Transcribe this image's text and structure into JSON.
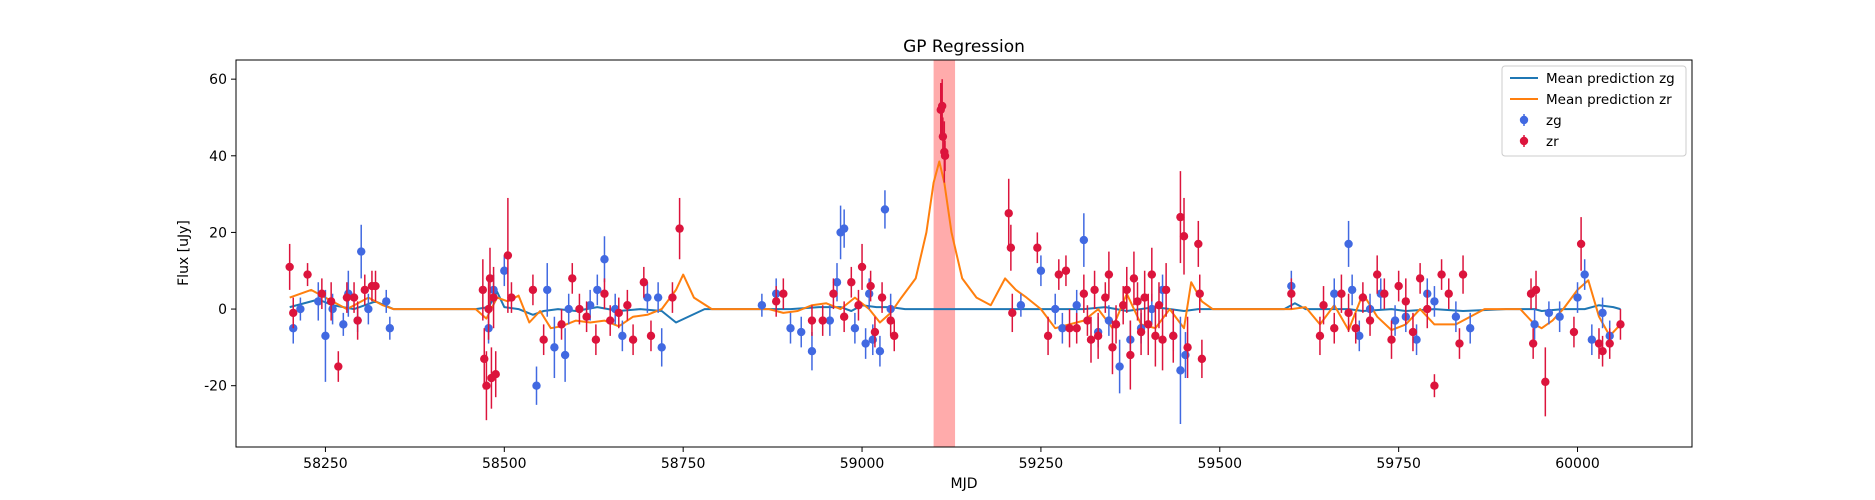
{
  "chart_data": {
    "type": "scatter",
    "title": "GP Regression",
    "xlabel": "MJD",
    "ylabel": "Flux [uJy]",
    "xlim": [
      58125,
      60160
    ],
    "ylim": [
      -36,
      65
    ],
    "xticks": [
      58250,
      58500,
      58750,
      59000,
      59250,
      59500,
      59750,
      60000
    ],
    "yticks": [
      -20,
      0,
      20,
      40,
      60
    ],
    "grid": false,
    "legend_position": "top-right",
    "highlight_span": {
      "x": [
        59100,
        59130
      ],
      "color": "#ff0000",
      "alpha": 0.33
    },
    "legend": [
      {
        "label": "Mean prediction zg",
        "kind": "line",
        "color": "#1f77b4"
      },
      {
        "label": "Mean prediction zr",
        "kind": "line",
        "color": "#ff7f0e"
      },
      {
        "label": "zg",
        "kind": "errorbar",
        "color": "#4169e1"
      },
      {
        "label": "zr",
        "kind": "errorbar",
        "color": "#dc143c"
      }
    ],
    "series": [
      {
        "name": "Mean prediction zg",
        "kind": "line",
        "color": "#1f77b4",
        "x": [
          58200,
          58240,
          58260,
          58290,
          58320,
          58345,
          58360,
          58460,
          58478,
          58490,
          58500,
          58520,
          58540,
          58555,
          58575,
          58600,
          58630,
          58660,
          58690,
          58720,
          58740,
          58780,
          58820,
          58870,
          58900,
          58940,
          58970,
          58985,
          59000,
          59020,
          59040,
          59060,
          59090,
          59150,
          59200,
          59230,
          59250,
          59280,
          59310,
          59340,
          59370,
          59410,
          59450,
          59470,
          59500,
          59560,
          59590,
          59605,
          59620,
          59660,
          59680,
          59700,
          59740,
          59760,
          59800,
          59840,
          59900,
          59940,
          59950,
          59980,
          60010,
          60030,
          60050,
          60060
        ],
        "y": [
          0.5,
          2.5,
          1,
          0,
          2,
          0,
          0,
          0,
          0.5,
          4.5,
          0.5,
          0,
          -1.5,
          -0.5,
          0,
          -0.5,
          0.5,
          -0.5,
          0,
          -0.5,
          -3.5,
          0,
          0,
          0,
          0,
          0.5,
          0.5,
          -0.5,
          1,
          0.5,
          0.5,
          0,
          0,
          0,
          0,
          0,
          0,
          0,
          0,
          0.5,
          -0.5,
          0.5,
          -0.5,
          0,
          0,
          0,
          0,
          1.5,
          0,
          0,
          0,
          -0.5,
          0,
          -0.5,
          0,
          -0.5,
          0,
          0,
          -0.5,
          0,
          0,
          1,
          0.5,
          0
        ]
      },
      {
        "name": "Mean prediction zr",
        "kind": "line",
        "color": "#ff7f0e",
        "x": [
          58200,
          58230,
          58250,
          58280,
          58310,
          58330,
          58345,
          58360,
          58460,
          58475,
          58490,
          58505,
          58520,
          58535,
          58550,
          58565,
          58580,
          58600,
          58620,
          58640,
          58660,
          58680,
          58700,
          58720,
          58740,
          58750,
          58765,
          58790,
          58850,
          58870,
          58890,
          58910,
          58930,
          58950,
          58970,
          58990,
          59010,
          59025,
          59040,
          59055,
          59075,
          59090,
          59100,
          59108,
          59115,
          59125,
          59140,
          59160,
          59180,
          59200,
          59215,
          59230,
          59250,
          59270,
          59290,
          59310,
          59330,
          59350,
          59370,
          59390,
          59410,
          59430,
          59450,
          59460,
          59475,
          59490,
          59520,
          59570,
          59600,
          59620,
          59640,
          59660,
          59680,
          59700,
          59720,
          59740,
          59760,
          59780,
          59800,
          59830,
          59870,
          59920,
          59940,
          59950,
          59965,
          59980,
          60000,
          60015,
          60030,
          60045,
          60060
        ],
        "y": [
          3,
          5,
          3,
          0,
          3,
          1,
          0,
          0,
          0,
          -2.5,
          3,
          2,
          3.5,
          -3.5,
          -0.5,
          -5,
          -4.5,
          -3,
          -3.5,
          -3,
          -4.5,
          -2,
          -1.5,
          0,
          5,
          9,
          3,
          0,
          0,
          0,
          -1,
          -0.5,
          1,
          1.5,
          0,
          3,
          0,
          -3.5,
          -1,
          3,
          8,
          20,
          33,
          38.5,
          33,
          20,
          8,
          3,
          1,
          8,
          5,
          3,
          0,
          -5,
          -4,
          -3,
          0,
          -5,
          4,
          -4,
          -5,
          0,
          -5,
          7,
          2,
          0,
          0,
          0,
          0,
          0.5,
          -4,
          1,
          -5.5,
          4,
          -2,
          -5.5,
          -4,
          0,
          -4,
          -4,
          0,
          0,
          -4,
          -5,
          -3,
          0,
          5,
          7.5,
          -2,
          -7,
          -4
        ]
      },
      {
        "name": "zg",
        "kind": "errorbar",
        "color": "#4169e1",
        "x": [
          58205,
          58215,
          58240,
          58250,
          58260,
          58275,
          58282,
          58295,
          58300,
          58310,
          58335,
          58340,
          58478,
          58485,
          58500,
          58545,
          58560,
          58570,
          58585,
          58590,
          58620,
          58630,
          58640,
          58655,
          58665,
          58700,
          58715,
          58720,
          58860,
          58880,
          58900,
          58915,
          58930,
          58955,
          58965,
          58970,
          58975,
          58990,
          59005,
          59010,
          59015,
          59025,
          59032,
          59040,
          59222,
          59250,
          59270,
          59280,
          59300,
          59310,
          59330,
          59345,
          59360,
          59375,
          59390,
          59405,
          59420,
          59435,
          59445,
          59452,
          59600,
          59660,
          59680,
          59685,
          59695,
          59710,
          59725,
          59745,
          59760,
          59775,
          59790,
          59800,
          59830,
          59850,
          59940,
          59960,
          59975,
          60000,
          60010,
          60020,
          60035,
          60045
        ],
        "y": [
          -5,
          0,
          2,
          -7,
          0,
          -4,
          4,
          -3,
          15,
          0,
          2,
          -5,
          -5,
          5,
          10,
          -20,
          5,
          -10,
          -12,
          0,
          1,
          5,
          13,
          0,
          -7,
          3,
          3,
          -10,
          1,
          4,
          -5,
          -6,
          -11,
          -3,
          7,
          20,
          21,
          -5,
          -9,
          4,
          -8,
          -11,
          26,
          0,
          1,
          10,
          0,
          -5,
          1,
          18,
          -6,
          -3,
          -15,
          -8,
          -5,
          0,
          5,
          -7,
          -16,
          -12,
          6,
          4,
          17,
          5,
          -7,
          0,
          4,
          -3,
          -2,
          -8,
          4,
          2,
          -2,
          -5,
          -4,
          -1,
          -2,
          3,
          9,
          -8,
          -1,
          -7
        ],
        "err": [
          4,
          3,
          5,
          12,
          4,
          3,
          6,
          3,
          7,
          4,
          3,
          3,
          4,
          4,
          4,
          5,
          7,
          8,
          7,
          4,
          4,
          4,
          6,
          4,
          4,
          4,
          4,
          5,
          3,
          4,
          4,
          4,
          5,
          4,
          5,
          7,
          5,
          4,
          4,
          4,
          4,
          4,
          5,
          4,
          3,
          4,
          4,
          4,
          4,
          7,
          4,
          4,
          7,
          5,
          4,
          4,
          4,
          4,
          14,
          6,
          4,
          4,
          6,
          4,
          4,
          4,
          4,
          4,
          4,
          4,
          4,
          4,
          4,
          4,
          4,
          3,
          4,
          4,
          4,
          4,
          4,
          4
        ]
      },
      {
        "name": "zr",
        "kind": "errorbar",
        "color": "#dc143c",
        "x": [
          58200,
          58205,
          58225,
          58245,
          58258,
          58268,
          58280,
          58290,
          58295,
          58305,
          58315,
          58320,
          58470,
          58472,
          58475,
          58478,
          58480,
          58482,
          58485,
          58488,
          58505,
          58510,
          58540,
          58555,
          58580,
          58595,
          58605,
          58615,
          58628,
          58640,
          58648,
          58660,
          58672,
          58680,
          58695,
          58705,
          58735,
          58745,
          58880,
          58890,
          58930,
          58945,
          58960,
          58975,
          58985,
          58995,
          59000,
          59012,
          59018,
          59028,
          59040,
          59045,
          59110,
          59112,
          59113,
          59115,
          59116,
          59205,
          59208,
          59210,
          59245,
          59260,
          59275,
          59285,
          59290,
          59300,
          59310,
          59315,
          59320,
          59325,
          59330,
          59340,
          59345,
          59350,
          59355,
          59365,
          59370,
          59375,
          59380,
          59385,
          59390,
          59395,
          59400,
          59405,
          59410,
          59415,
          59420,
          59425,
          59435,
          59445,
          59450,
          59455,
          59470,
          59472,
          59475,
          59600,
          59640,
          59645,
          59660,
          59670,
          59680,
          59690,
          59700,
          59710,
          59720,
          59730,
          59740,
          59750,
          59760,
          59770,
          59780,
          59790,
          59800,
          59810,
          59820,
          59835,
          59840,
          59935,
          59938,
          59942,
          59955,
          59995,
          60005,
          60030,
          60035,
          60045,
          60060
        ],
        "y": [
          11,
          -1,
          9,
          4,
          2,
          -15,
          3,
          3,
          -3,
          5,
          6,
          6,
          5,
          -13,
          -20,
          0,
          8,
          -18,
          3,
          -17,
          14,
          3,
          5,
          -8,
          -4,
          8,
          0,
          -2,
          -8,
          4,
          -3,
          -1,
          1,
          -8,
          7,
          -7,
          3,
          21,
          2,
          4,
          -3,
          -3,
          4,
          -2,
          7,
          1,
          11,
          6,
          -6,
          3,
          -3,
          -7,
          52,
          53,
          45,
          41,
          40,
          25,
          16,
          -1,
          16,
          -7,
          9,
          10,
          -5,
          -5,
          4,
          -3,
          -8,
          5,
          -7,
          3,
          9,
          -10,
          -4,
          1,
          5,
          -12,
          8,
          2,
          -6,
          3,
          -4,
          9,
          -7,
          1,
          -8,
          5,
          -7,
          24,
          19,
          -10,
          17,
          4,
          -13,
          4,
          -7,
          1,
          -5,
          4,
          -1,
          -5,
          3,
          -3,
          9,
          4,
          -8,
          6,
          2,
          -6,
          8,
          0,
          -20,
          9,
          4,
          -9,
          9,
          4,
          -9,
          5,
          -19,
          -6,
          17,
          -9,
          -11,
          -9,
          -4
        ],
        "err": [
          6,
          4,
          3,
          4,
          5,
          4,
          4,
          4,
          5,
          4,
          4,
          4,
          8,
          8,
          9,
          8,
          8,
          8,
          8,
          6,
          15,
          4,
          4,
          4,
          4,
          4,
          4,
          4,
          4,
          4,
          4,
          4,
          4,
          4,
          4,
          4,
          4,
          8,
          4,
          4,
          4,
          4,
          4,
          4,
          4,
          4,
          6,
          4,
          4,
          4,
          4,
          4,
          7,
          7,
          5,
          8,
          4,
          9,
          6,
          5,
          4,
          5,
          4,
          4,
          5,
          4,
          5,
          4,
          6,
          5,
          6,
          4,
          6,
          7,
          5,
          5,
          6,
          9,
          7,
          5,
          6,
          7,
          8,
          7,
          8,
          6,
          8,
          7,
          7,
          12,
          10,
          8,
          6,
          5,
          5,
          4,
          5,
          5,
          4,
          5,
          5,
          4,
          4,
          4,
          5,
          4,
          5,
          4,
          6,
          5,
          4,
          5,
          3,
          4,
          4,
          4,
          5,
          4,
          4,
          5,
          9,
          4,
          7,
          4,
          4,
          4,
          4
        ]
      }
    ]
  }
}
